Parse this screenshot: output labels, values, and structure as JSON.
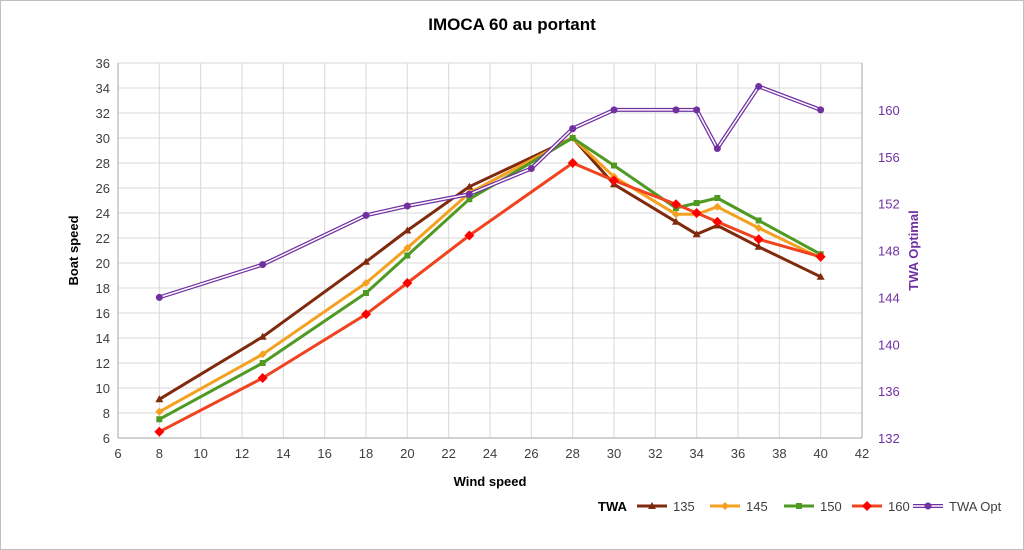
{
  "chart_data": {
    "type": "line",
    "title": "IMOCA 60 au portant",
    "xlabel": "Wind speed",
    "ylabel": "Boat speed",
    "y2label": "TWA Optimal",
    "xlim": [
      6,
      42
    ],
    "xticks": [
      6,
      8,
      10,
      12,
      14,
      16,
      18,
      20,
      22,
      24,
      26,
      28,
      30,
      32,
      34,
      36,
      38,
      40,
      42
    ],
    "ylim": [
      6,
      36
    ],
    "yticks": [
      6,
      8,
      10,
      12,
      14,
      16,
      18,
      20,
      22,
      24,
      26,
      28,
      30,
      32,
      34,
      36
    ],
    "y2lim": [
      132,
      164
    ],
    "y2ticks": [
      132,
      136,
      140,
      144,
      148,
      152,
      156,
      160
    ],
    "grid": true,
    "legend_position": "bottom-right",
    "legend_title": "TWA",
    "series": [
      {
        "name": "135",
        "axis": "left",
        "color": "#7f2a0c",
        "marker": "triangle",
        "x": [
          8,
          13,
          18,
          20,
          23,
          28,
          30,
          33,
          34,
          35,
          37,
          40
        ],
        "y": [
          9.1,
          14.1,
          20.1,
          22.6,
          26.1,
          30.0,
          26.3,
          23.3,
          22.3,
          23.0,
          21.3,
          18.9
        ]
      },
      {
        "name": "145",
        "axis": "left",
        "color": "#f4a020",
        "marker": "diamond",
        "x": [
          8,
          13,
          18,
          20,
          23,
          28,
          30,
          33,
          34,
          35,
          37,
          40
        ],
        "y": [
          8.1,
          12.7,
          18.4,
          21.2,
          25.6,
          30.0,
          26.9,
          23.9,
          23.9,
          24.5,
          22.8,
          20.4
        ]
      },
      {
        "name": "150",
        "axis": "left",
        "color": "#4e9a23",
        "marker": "square",
        "x": [
          8,
          13,
          18,
          20,
          23,
          28,
          30,
          33,
          34,
          35,
          37,
          40
        ],
        "y": [
          7.5,
          12.0,
          17.6,
          20.6,
          25.1,
          30.0,
          27.8,
          24.4,
          24.8,
          25.2,
          23.4,
          20.7
        ]
      },
      {
        "name": "160",
        "axis": "left",
        "color": "#f0431f",
        "marker": "diamond-red",
        "x": [
          8,
          13,
          18,
          20,
          23,
          28,
          30,
          33,
          34,
          35,
          37,
          40
        ],
        "y": [
          6.5,
          10.8,
          15.9,
          18.4,
          22.2,
          28.0,
          26.6,
          24.7,
          24.0,
          23.3,
          21.9,
          20.5
        ]
      },
      {
        "name": "TWA Opt",
        "axis": "right",
        "color": "#7030a0",
        "marker": "circle",
        "x": [
          8,
          13,
          18,
          20,
          23,
          26,
          28,
          30,
          33,
          34,
          35,
          37,
          40
        ],
        "y": [
          144,
          146.8,
          151,
          151.8,
          152.8,
          155,
          158.4,
          160,
          160,
          160,
          156.7,
          162,
          160
        ]
      }
    ]
  }
}
